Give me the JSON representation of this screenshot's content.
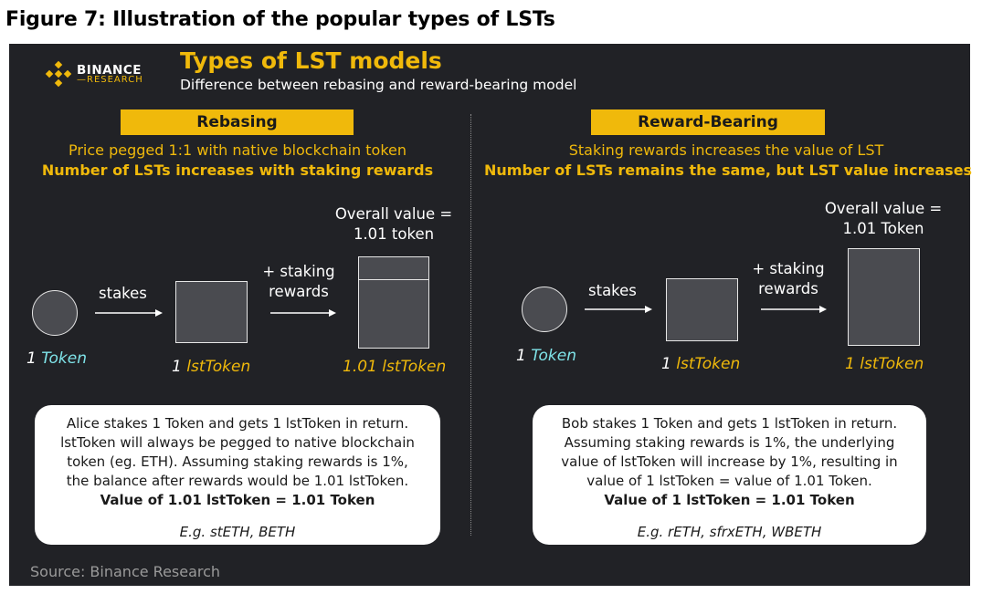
{
  "figure_title": "Figure 7: Illustration of the popular types of LSTs",
  "brand": {
    "name": "BINANCE",
    "sub": "RESEARCH",
    "logo_icon": "binance-diamond-icon",
    "accent": "#F0B90B"
  },
  "header": {
    "title": "Types of LST models",
    "subtitle": "Difference between rebasing and reward-bearing model"
  },
  "left": {
    "tag": "Rebasing",
    "line1": "Price pegged 1:1 with native blockchain token",
    "line2": "Number of LSTs increases with staking rewards",
    "stakes": "stakes",
    "staking_rewards": [
      "+ staking",
      "rewards"
    ],
    "overall": [
      "Overall value =",
      "1.01 token"
    ],
    "label_token_num": "1",
    "label_token": "Token",
    "label_lst_num": "1",
    "label_lst": "lstToken",
    "label_lst2_num": "1.01",
    "label_lst2": "lstToken",
    "info": [
      "Alice stakes 1 Token and gets 1 lstToken in return.",
      "lstToken will always be pegged to native blockchain",
      "token (eg. ETH). Assuming staking rewards is 1%,",
      "the balance after rewards would be 1.01 lstToken."
    ],
    "info_bold": "Value of 1.01 lstToken = 1.01 Token",
    "example": "E.g. stETH, BETH"
  },
  "right": {
    "tag": "Reward-Bearing",
    "line1": "Staking rewards increases the value of LST",
    "line2": "Number of LSTs remains the same, but LST value increases",
    "stakes": "stakes",
    "staking_rewards": [
      "+ staking",
      "rewards"
    ],
    "overall": [
      "Overall value =",
      "1.01 Token"
    ],
    "label_token_num": "1",
    "label_token": "Token",
    "label_lst_num": "1",
    "label_lst": "lstToken",
    "label_lst2_num": "1",
    "label_lst2": "lstToken",
    "info": [
      "Bob stakes 1 Token and gets 1 lstToken in return.",
      "Assuming staking rewards is 1%, the underlying",
      "value of lstToken will increase by 1%, resulting in",
      "value of 1 lstToken = value of 1.01 Token."
    ],
    "info_bold": "Value of 1 lstToken = 1.01 Token",
    "example": "E.g. rETH, sfrxETH, WBETH"
  },
  "source": "Source: Binance Research"
}
